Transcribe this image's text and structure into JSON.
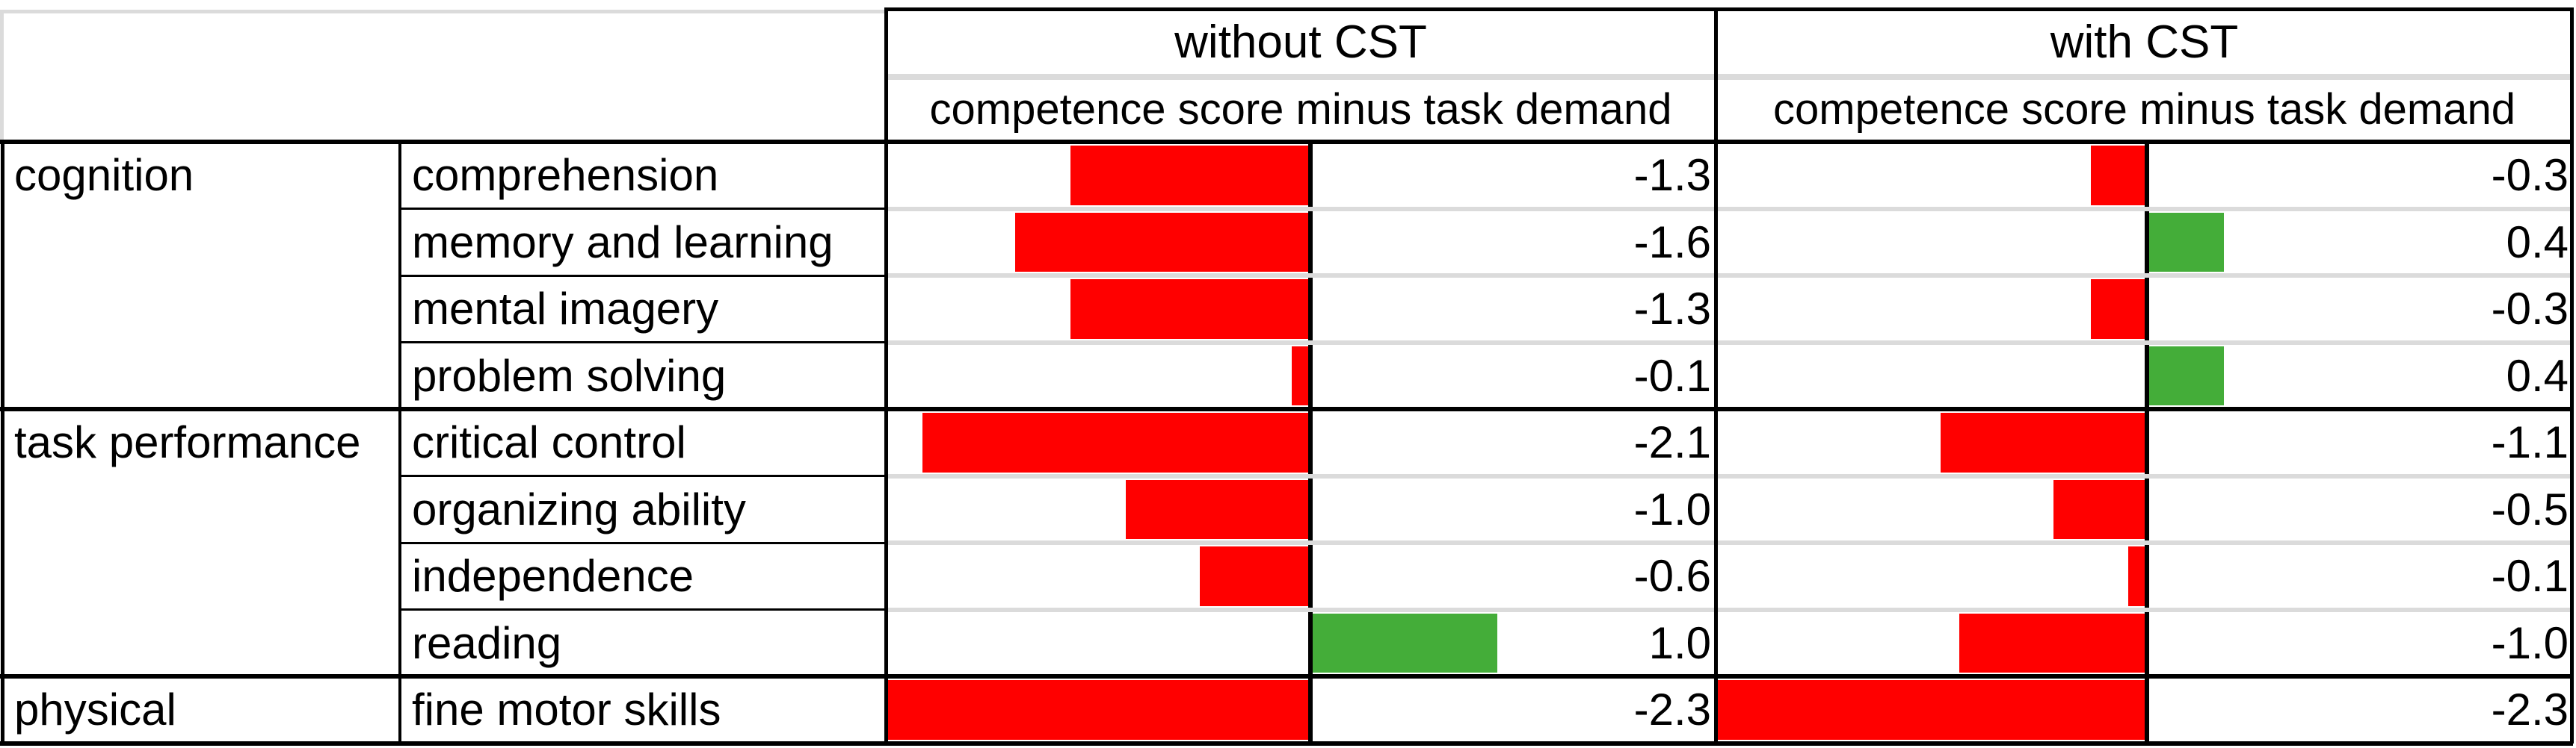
{
  "table": {
    "sections": [
      {
        "id": "without",
        "title": "without CST",
        "subtitle": "competence score minus task demand"
      },
      {
        "id": "with",
        "title": "with CST",
        "subtitle": "competence score minus task demand"
      }
    ],
    "groups": [
      {
        "category": "cognition",
        "rows": [
          {
            "skill": "comprehension",
            "without_value": -1.3,
            "without_display": "-1.3",
            "with_value": -0.3,
            "with_display": "-0.3"
          },
          {
            "skill": "memory and learning",
            "without_value": -1.6,
            "without_display": "-1.6",
            "with_value": 0.4,
            "with_display": "0.4"
          },
          {
            "skill": "mental imagery",
            "without_value": -1.3,
            "without_display": "-1.3",
            "with_value": -0.3,
            "with_display": "-0.3"
          },
          {
            "skill": "problem solving",
            "without_value": -0.1,
            "without_display": "-0.1",
            "with_value": 0.4,
            "with_display": "0.4"
          }
        ]
      },
      {
        "category": "task performance",
        "rows": [
          {
            "skill": "critical control",
            "without_value": -2.1,
            "without_display": "-2.1",
            "with_value": -1.1,
            "with_display": "-1.1"
          },
          {
            "skill": "organizing ability",
            "without_value": -1.0,
            "without_display": "-1.0",
            "with_value": -0.5,
            "with_display": "-0.5"
          },
          {
            "skill": "independence",
            "without_value": -0.6,
            "without_display": "-0.6",
            "with_value": -0.1,
            "with_display": "-0.1"
          },
          {
            "skill": "reading",
            "without_value": 1.0,
            "without_display": "1.0",
            "with_value": -1.0,
            "with_display": "-1.0"
          }
        ]
      },
      {
        "category": "physical",
        "rows": [
          {
            "skill": "fine motor skills",
            "without_value": -2.3,
            "without_display": "-2.3",
            "with_value": -2.3,
            "with_display": "-2.3"
          }
        ]
      }
    ],
    "colors": {
      "negative_bar": "#FF0000",
      "positive_bar": "#44AD39",
      "gridline_gray": "#DBDBDB",
      "border_black": "#000000"
    }
  },
  "chart_data": {
    "type": "bar",
    "orientation": "horizontal",
    "title": "",
    "value_axis_label": "competence score minus task demand",
    "categories": [
      "comprehension",
      "memory and learning",
      "mental imagery",
      "problem solving",
      "critical control",
      "organizing ability",
      "independence",
      "reading",
      "fine motor skills"
    ],
    "category_groups": [
      {
        "name": "cognition",
        "members": [
          "comprehension",
          "memory and learning",
          "mental imagery",
          "problem solving"
        ]
      },
      {
        "name": "task performance",
        "members": [
          "critical control",
          "organizing ability",
          "independence",
          "reading"
        ]
      },
      {
        "name": "physical",
        "members": [
          "fine motor skills"
        ]
      }
    ],
    "series": [
      {
        "name": "without CST",
        "values": [
          -1.3,
          -1.6,
          -1.3,
          -0.1,
          -2.1,
          -1.0,
          -0.6,
          1.0,
          -2.3
        ]
      },
      {
        "name": "with CST",
        "values": [
          -0.3,
          0.4,
          -0.3,
          0.4,
          -1.1,
          -0.5,
          -0.1,
          -1.0,
          -2.3
        ]
      }
    ],
    "value_range": [
      -2.3,
      1.0
    ],
    "negative_color": "#FF0000",
    "positive_color": "#44AD39",
    "grid": false,
    "legend_position": "none"
  }
}
